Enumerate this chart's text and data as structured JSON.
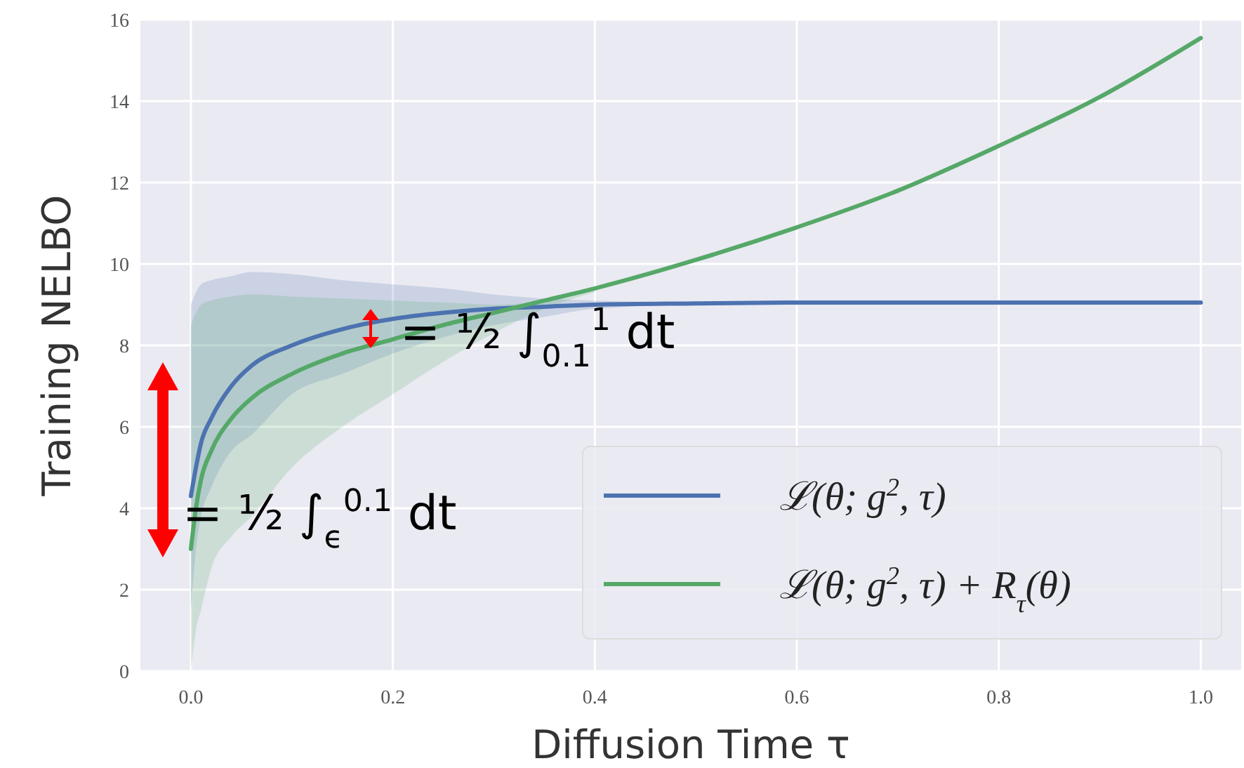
{
  "chart_data": {
    "type": "line",
    "xlabel": "Diffusion Time τ",
    "ylabel": "Training NELBO",
    "xlim": [
      -0.05,
      1.04
    ],
    "ylim": [
      0,
      16
    ],
    "xticks": [
      {
        "value": 0,
        "label": "0.0"
      },
      {
        "value": 0.2,
        "label": "0.2"
      },
      {
        "value": 0.4,
        "label": "0.4"
      },
      {
        "value": 0.6,
        "label": "0.6"
      },
      {
        "value": 0.8,
        "label": "0.8"
      },
      {
        "value": 1,
        "label": "1.0"
      }
    ],
    "yticks": [
      0,
      2,
      4,
      6,
      8,
      10,
      12,
      14,
      16
    ],
    "grid": true,
    "legend": "bottom right",
    "line_style": "solid",
    "series": [
      {
        "name": "ℒ(θ; g$^{2}$, τ)",
        "color": "#4c72b0",
        "x": [
          0,
          0.005,
          0.01,
          0.02,
          0.04,
          0.06,
          0.1,
          0.15,
          0.2,
          0.25,
          0.3,
          0.35,
          0.4,
          0.5,
          0.6,
          0.7,
          0.8,
          0.9,
          1.0
        ],
        "values": [
          4.3,
          5.0,
          5.6,
          6.2,
          7.0,
          7.5,
          8.0,
          8.4,
          8.65,
          8.8,
          8.9,
          8.95,
          9.0,
          9.03,
          9.05,
          9.05,
          9.05,
          9.05,
          9.05
        ],
        "lower": [
          1.5,
          3.0,
          3.8,
          4.5,
          5.4,
          5.8,
          6.8,
          7.3,
          7.8,
          8.2,
          8.5,
          8.7,
          8.9,
          9.0,
          null,
          null,
          null,
          null,
          null
        ],
        "upper": [
          9.0,
          9.3,
          9.5,
          9.6,
          9.7,
          9.8,
          9.75,
          9.6,
          9.5,
          9.4,
          9.25,
          9.15,
          9.1,
          9.05,
          null,
          null,
          null,
          null,
          null
        ]
      },
      {
        "name": "ℒ(θ; g$^{2}$, τ) + R$_{τ}$(θ)",
        "color": "#55a868",
        "x": [
          0,
          0.005,
          0.01,
          0.02,
          0.04,
          0.06,
          0.1,
          0.15,
          0.2,
          0.25,
          0.3,
          0.35,
          0.4,
          0.5,
          0.6,
          0.7,
          0.8,
          0.9,
          1.0
        ],
        "values": [
          3.0,
          4.0,
          4.7,
          5.4,
          6.2,
          6.7,
          7.3,
          7.8,
          8.15,
          8.5,
          8.8,
          9.1,
          9.4,
          10.1,
          10.9,
          11.8,
          12.9,
          14.1,
          15.55
        ],
        "lower": [
          0,
          1.0,
          1.5,
          2.5,
          3.3,
          3.8,
          5.0,
          6.0,
          6.8,
          7.6,
          8.3,
          8.9,
          9.3,
          null,
          null,
          null,
          null,
          null,
          null
        ],
        "upper": [
          8.5,
          8.8,
          9.0,
          9.1,
          9.2,
          9.25,
          9.2,
          9.15,
          9.1,
          9.05,
          9.0,
          9.1,
          9.4,
          null,
          null,
          null,
          null,
          null,
          null
        ]
      }
    ],
    "annotations": [
      "= ½ ∫$_{0.1}$$^{1}$ dt",
      "= ½ ∫$_{ϵ}$$^{0.1}$ dt"
    ]
  }
}
